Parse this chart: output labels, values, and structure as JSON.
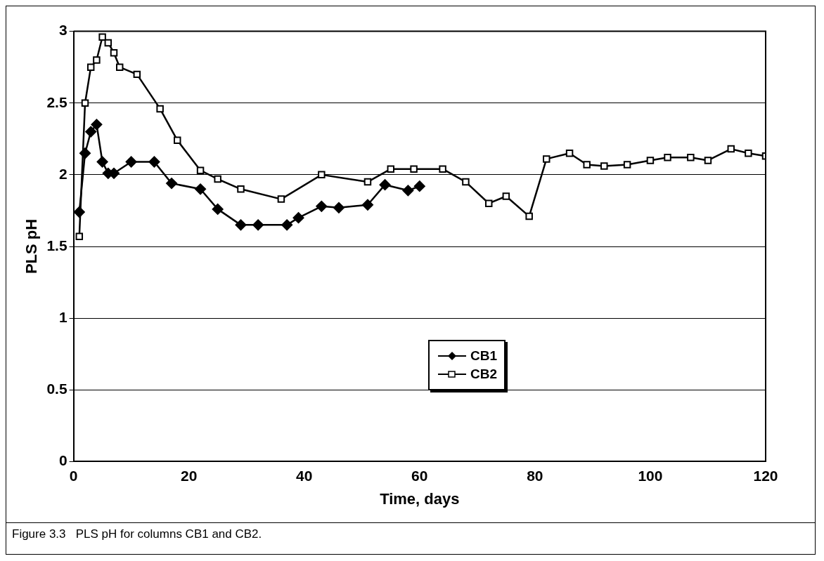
{
  "chart_data": {
    "type": "line",
    "xlabel": "Time, days",
    "ylabel": "PLS pH",
    "annotations": [
      "Figure 3.3   PLS pH for columns CB1 and CB2."
    ],
    "xlim": [
      0,
      120
    ],
    "xticks": [
      0,
      20,
      40,
      60,
      80,
      100,
      120
    ],
    "ylim": [
      0,
      3
    ],
    "yticks": [
      0,
      0.5,
      1,
      1.5,
      2,
      2.5,
      3
    ],
    "grid": "y",
    "legend": "bottom",
    "line_style": "solid",
    "series": [
      {
        "name": "CB1",
        "color": "#000000",
        "marker": "diamond",
        "x": [
          1,
          2,
          3,
          4,
          5,
          6,
          7,
          10,
          14,
          17,
          22,
          25,
          29,
          32,
          37,
          39,
          43,
          46,
          51,
          54,
          58,
          60
        ],
        "values": [
          1.74,
          2.15,
          2.3,
          2.35,
          2.09,
          2.01,
          2.01,
          2.09,
          2.09,
          1.94,
          1.9,
          1.76,
          1.65,
          1.65,
          1.65,
          1.7,
          1.78,
          1.77,
          1.79,
          1.93,
          1.89,
          1.92
        ]
      },
      {
        "name": "CB2",
        "color": "#000000",
        "marker": "square",
        "x": [
          1,
          2,
          3,
          4,
          5,
          6,
          7,
          8,
          11,
          15,
          18,
          22,
          25,
          29,
          36,
          43,
          51,
          55,
          59,
          64,
          68,
          72,
          75,
          79,
          82,
          86,
          89,
          92,
          96,
          100,
          103,
          107,
          110,
          114,
          117,
          120
        ],
        "values": [
          1.57,
          2.5,
          2.75,
          2.8,
          2.96,
          2.92,
          2.85,
          2.75,
          2.7,
          2.46,
          2.24,
          2.03,
          1.97,
          1.9,
          1.83,
          2.0,
          1.95,
          2.04,
          2.04,
          2.04,
          1.95,
          1.8,
          1.85,
          1.71,
          2.11,
          2.15,
          2.07,
          2.06,
          2.07,
          2.1,
          2.12,
          2.12,
          2.1,
          2.18,
          2.15,
          2.13
        ]
      }
    ]
  }
}
